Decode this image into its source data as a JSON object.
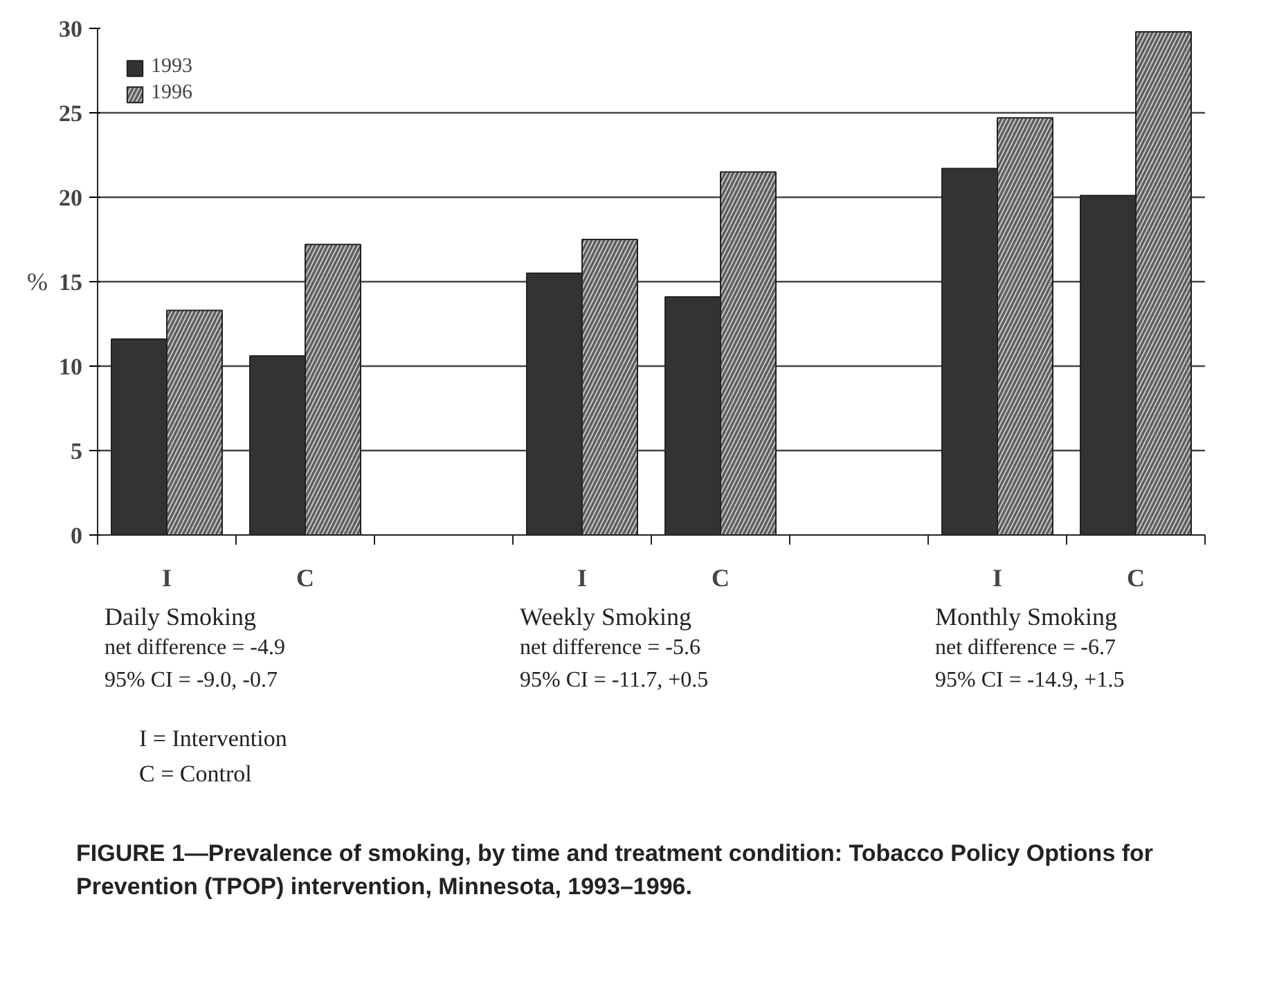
{
  "chart_data": {
    "type": "bar",
    "title": "FIGURE 1—Prevalence of smoking, by time and treatment condition: Tobacco Policy Options for Prevention (TPOP) intervention, Minnesota, 1993–1996.",
    "ylabel": "%",
    "categories": [
      "I",
      "C",
      null,
      "I",
      "C",
      null,
      "I",
      "C"
    ],
    "series": [
      {
        "name": "1993",
        "color": "#333333",
        "values": [
          11.6,
          10.6,
          null,
          15.5,
          14.1,
          null,
          21.7,
          20.1
        ]
      },
      {
        "name": "1996",
        "color": "#5c5c5c",
        "values": [
          13.3,
          17.2,
          null,
          17.5,
          21.5,
          null,
          24.7,
          29.8
        ]
      }
    ],
    "ylim": [
      0,
      30
    ],
    "yticks": [
      0,
      5,
      10,
      15,
      20,
      25,
      30
    ],
    "grid": "y",
    "legend": "top left",
    "annotations": [
      "Daily Smoking",
      "net difference = -4.9",
      "95% CI = -9.0, -0.7",
      "Weekly Smoking",
      "net difference = -5.6",
      "95% CI = -11.7, +0.5",
      "Monthly Smoking",
      "net difference = -6.7",
      "95% CI = -14.9, +1.5",
      "I = Intervention",
      "C = Control"
    ]
  }
}
